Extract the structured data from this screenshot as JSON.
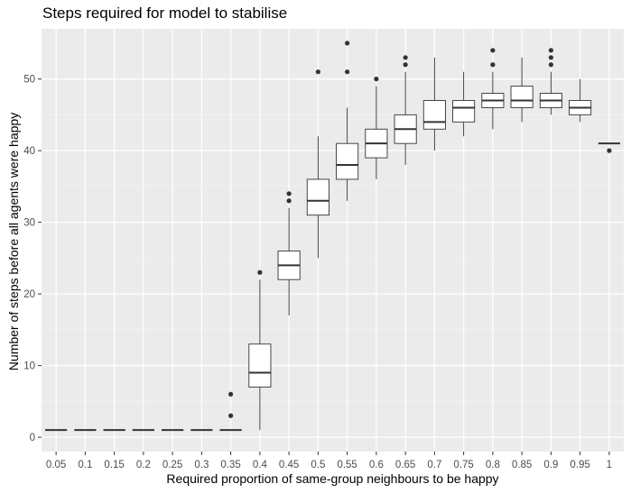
{
  "chart_data": {
    "type": "boxplot",
    "title": "Steps required for model to stabilise",
    "xlabel": "Required proportion of same-group neighbours to be happy",
    "ylabel": "Number of steps before all agents were happy",
    "ylim": [
      -2,
      57
    ],
    "yticks": [
      0,
      10,
      20,
      30,
      40,
      50
    ],
    "grid": true,
    "categories": [
      "0.05",
      "0.1",
      "0.15",
      "0.2",
      "0.25",
      "0.3",
      "0.35",
      "0.4",
      "0.45",
      "0.5",
      "0.55",
      "0.6",
      "0.65",
      "0.7",
      "0.75",
      "0.8",
      "0.85",
      "0.9",
      "0.95",
      "1"
    ],
    "boxes": [
      {
        "min": 1,
        "q1": 1,
        "median": 1,
        "q3": 1,
        "max": 1,
        "outliers": []
      },
      {
        "min": 1,
        "q1": 1,
        "median": 1,
        "q3": 1,
        "max": 1,
        "outliers": []
      },
      {
        "min": 1,
        "q1": 1,
        "median": 1,
        "q3": 1,
        "max": 1,
        "outliers": []
      },
      {
        "min": 1,
        "q1": 1,
        "median": 1,
        "q3": 1,
        "max": 1,
        "outliers": []
      },
      {
        "min": 1,
        "q1": 1,
        "median": 1,
        "q3": 1,
        "max": 1,
        "outliers": []
      },
      {
        "min": 1,
        "q1": 1,
        "median": 1,
        "q3": 1,
        "max": 1,
        "outliers": []
      },
      {
        "min": 1,
        "q1": 1,
        "median": 1,
        "q3": 1,
        "max": 1,
        "outliers": [
          3,
          6
        ]
      },
      {
        "min": 1,
        "q1": 7,
        "median": 9,
        "q3": 13,
        "max": 22,
        "outliers": [
          23
        ]
      },
      {
        "min": 17,
        "q1": 22,
        "median": 24,
        "q3": 26,
        "max": 32,
        "outliers": [
          33,
          34
        ]
      },
      {
        "min": 25,
        "q1": 31,
        "median": 33,
        "q3": 36,
        "max": 42,
        "outliers": [
          51
        ]
      },
      {
        "min": 33,
        "q1": 36,
        "median": 38,
        "q3": 41,
        "max": 46,
        "outliers": [
          51,
          55
        ]
      },
      {
        "min": 36,
        "q1": 39,
        "median": 41,
        "q3": 43,
        "max": 49,
        "outliers": [
          50
        ]
      },
      {
        "min": 38,
        "q1": 41,
        "median": 43,
        "q3": 45,
        "max": 51,
        "outliers": [
          52,
          53
        ]
      },
      {
        "min": 40,
        "q1": 43,
        "median": 44,
        "q3": 47,
        "max": 53,
        "outliers": []
      },
      {
        "min": 42,
        "q1": 44,
        "median": 46,
        "q3": 47,
        "max": 51,
        "outliers": []
      },
      {
        "min": 43,
        "q1": 46,
        "median": 47,
        "q3": 48,
        "max": 51,
        "outliers": [
          52,
          54
        ]
      },
      {
        "min": 44,
        "q1": 46,
        "median": 47,
        "q3": 49,
        "max": 53,
        "outliers": []
      },
      {
        "min": 45,
        "q1": 46,
        "median": 47,
        "q3": 48,
        "max": 51,
        "outliers": [
          52,
          53,
          54
        ]
      },
      {
        "min": 44,
        "q1": 45,
        "median": 46,
        "q3": 47,
        "max": 50,
        "outliers": []
      },
      {
        "min": 41,
        "q1": 41,
        "median": 41,
        "q3": 41,
        "max": 41,
        "outliers": [
          40
        ]
      }
    ]
  }
}
